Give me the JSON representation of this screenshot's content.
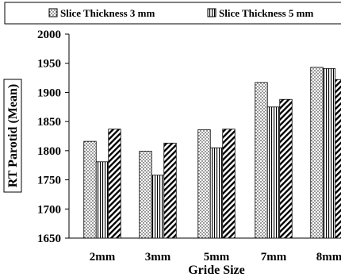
{
  "chart_data": {
    "type": "bar",
    "categories": [
      "2mm",
      "3mm",
      "5mm",
      "7mm",
      "8mm"
    ],
    "series": [
      {
        "name": "Slice Thickness 3 mm",
        "pattern": "dots",
        "values": [
          1816,
          1799,
          1836,
          1917,
          1943
        ]
      },
      {
        "name": "Slice Thickness 5 mm",
        "pattern": "vertical",
        "values": [
          1781,
          1758,
          1805,
          1875,
          1941
        ]
      },
      {
        "name": "",
        "pattern": "diagonal",
        "values": [
          1837,
          1813,
          1837,
          1888,
          1922
        ]
      }
    ],
    "title": "",
    "xlabel": "Gride Size",
    "ylabel": "RT Parotid (Mean)",
    "ylim": [
      1650,
      2000
    ],
    "yticks": [
      "1650",
      "1700",
      "1750",
      "1800",
      "1850",
      "1900",
      "1950",
      "2000"
    ],
    "grid": false,
    "legend_position": "top"
  }
}
